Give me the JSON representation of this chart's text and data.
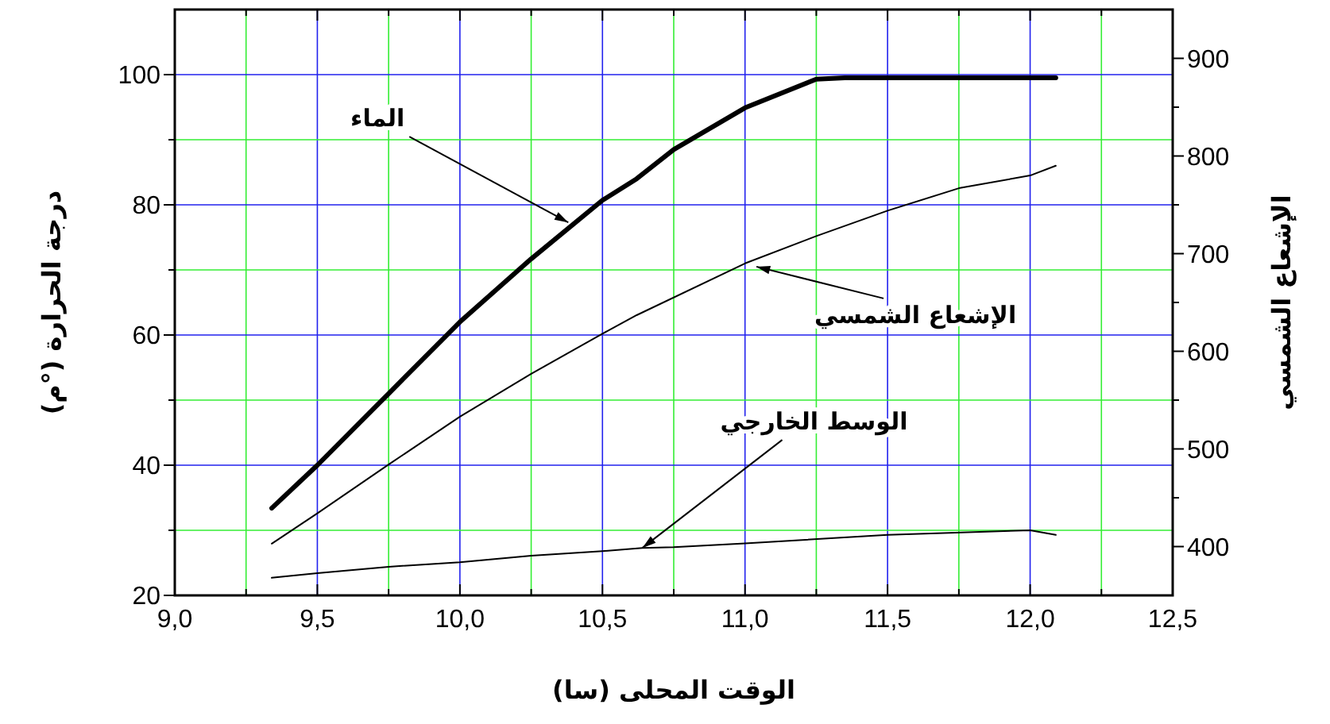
{
  "chart_data": {
    "type": "line",
    "xlabel": "الوقت  المحلى (سا)",
    "ylabel": "درجة الحرارة (°م)",
    "y2label": "الإشعاع الشمسي",
    "xlim": [
      9,
      12.5
    ],
    "ylim": [
      20,
      110
    ],
    "y2lim": [
      350,
      950
    ],
    "xticks": [
      {
        "value": 9,
        "label": "9,0"
      },
      {
        "value": 9.25,
        "label": null
      },
      {
        "value": 9.5,
        "label": "9,5"
      },
      {
        "value": 9.75,
        "label": null
      },
      {
        "value": 10,
        "label": "10,0"
      },
      {
        "value": 10.25,
        "label": null
      },
      {
        "value": 10.5,
        "label": "10,5"
      },
      {
        "value": 10.75,
        "label": null
      },
      {
        "value": 11,
        "label": "11,0"
      },
      {
        "value": 11.25,
        "label": null
      },
      {
        "value": 11.5,
        "label": "11,5"
      },
      {
        "value": 11.75,
        "label": null
      },
      {
        "value": 12,
        "label": "12,0"
      },
      {
        "value": 12.25,
        "label": null
      },
      {
        "value": 12.5,
        "label": "12,5"
      }
    ],
    "yticks": [
      20,
      {
        "value": 30,
        "label": null
      },
      40,
      {
        "value": 50,
        "label": null
      },
      60,
      {
        "value": 70,
        "label": null
      },
      80,
      {
        "value": 90,
        "label": null
      },
      100
    ],
    "y2ticks": [
      400,
      {
        "value": 450,
        "label": null
      },
      500,
      {
        "value": 550,
        "label": null
      },
      600,
      {
        "value": 650,
        "label": null
      },
      700,
      {
        "value": 750,
        "label": null
      },
      800,
      {
        "value": 850,
        "label": null
      },
      900
    ],
    "grid": true,
    "marker": "none",
    "line_style": "solid",
    "series": [
      {
        "color": "#000000",
        "x": [
          9.34,
          9.5,
          9.75,
          10,
          10.25,
          10.5,
          10.62,
          10.75,
          11,
          11.25,
          11.35,
          12.09
        ],
        "values": [
          33.4,
          40,
          51,
          62,
          71.7,
          80.7,
          84,
          88.5,
          94.9,
          99.3,
          99.5,
          99.5
        ]
      },
      {
        "color": "#000000",
        "axis": "y2",
        "x": [
          9.34,
          9.5,
          9.75,
          10,
          10.25,
          10.5,
          10.62,
          11,
          11.25,
          11.5,
          11.75,
          12,
          12.09
        ],
        "values": [
          403,
          434,
          484,
          533,
          577,
          618,
          637,
          690,
          718,
          744,
          767,
          780,
          790
        ]
      },
      {
        "color": "#000000",
        "x": [
          9.34,
          9.5,
          9.75,
          10,
          10.25,
          10.5,
          10.64,
          10.75,
          11,
          11.5,
          12,
          12.09
        ],
        "values": [
          22.7,
          23.4,
          24.4,
          25.1,
          26.1,
          26.8,
          27.3,
          27.4,
          28,
          29.3,
          30,
          29.3
        ]
      }
    ],
    "annotations": [
      {
        "text": "الماء",
        "x": 10.38,
        "y": 77.3
      },
      {
        "text": "الإشعاع الشمسي",
        "x": 11.04,
        "y": 70.5
      },
      {
        "text": "الوسط  الخارجي",
        "x": 10.64,
        "y": 27.3
      }
    ]
  }
}
